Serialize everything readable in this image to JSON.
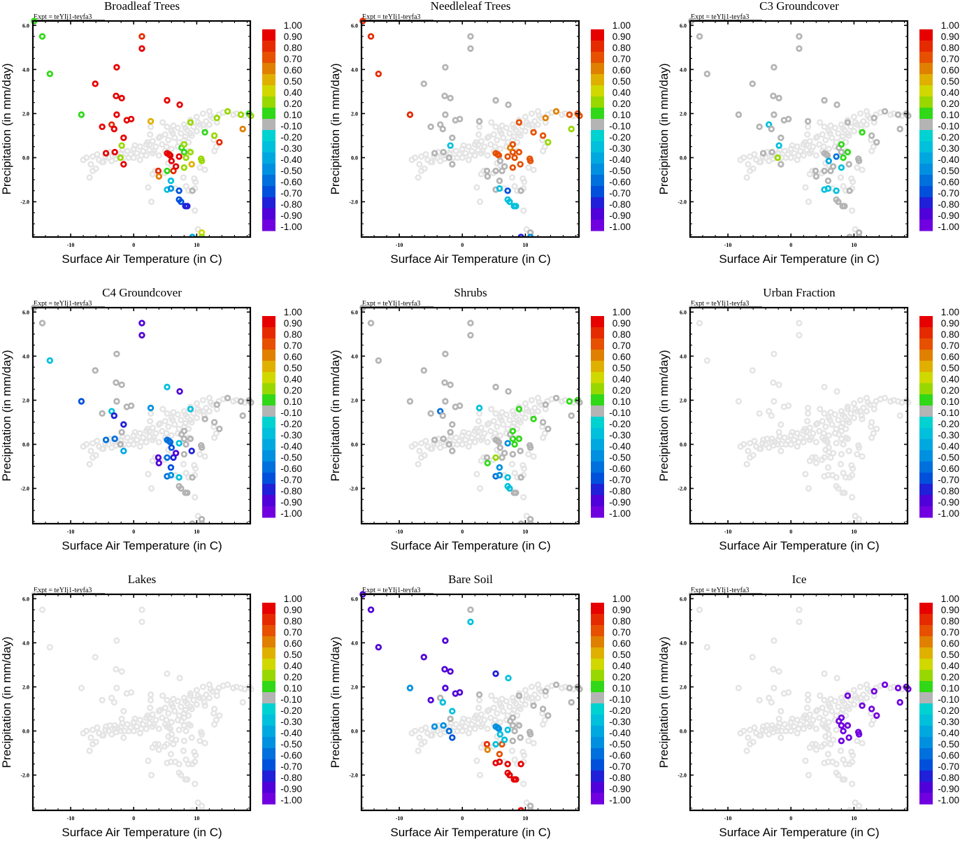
{
  "chart_data": {
    "type": "scatter",
    "layout": "3x3 grid of panels",
    "shared": {
      "expt_label": "Expt = teYIj1-teyfa3",
      "xlabel": "Surface Air Temperature (in C)",
      "ylabel": "Precipitation (in mm/day)",
      "xlim": [
        -16,
        18.5
      ],
      "ylim": [
        -3.6,
        6.2
      ],
      "xticks": [
        -10,
        0,
        10
      ],
      "xtick_labels": [
        "-10",
        "0",
        "10"
      ],
      "yticks": [
        -2,
        0,
        2,
        4,
        6
      ],
      "ytick_labels": [
        "-2.0",
        "0.0",
        "2.0",
        "4.0",
        "6.0"
      ],
      "colorbar": {
        "labels": [
          "1.00",
          "0.90",
          "0.80",
          "0.70",
          "0.60",
          "0.50",
          "0.40",
          "0.20",
          "0.10",
          "-0.10",
          "-0.20",
          "-0.30",
          "-0.40",
          "-0.50",
          "-0.60",
          "-0.70",
          "-0.80",
          "-0.90",
          "-1.00"
        ],
        "colors": [
          "#e60000",
          "#e62a00",
          "#e65000",
          "#e08000",
          "#e0b000",
          "#d0d800",
          "#98d800",
          "#30d818",
          "#b4b4b4",
          "#00d2d2",
          "#00c0dc",
          "#00a8e0",
          "#0090e0",
          "#0070dc",
          "#0050dc",
          "#2020d8",
          "#5000d8",
          "#7000e0"
        ]
      },
      "background_color": "#e4e4e4",
      "points_xy": [
        [
          -15.8,
          6.2
        ],
        [
          -14.5,
          5.5
        ],
        [
          -13.3,
          3.8
        ],
        [
          -8.3,
          1.95
        ],
        [
          -6.1,
          3.35
        ],
        [
          -5.0,
          1.4
        ],
        [
          -4.4,
          0.2
        ],
        [
          -3.5,
          1.5
        ],
        [
          -3.1,
          1.3
        ],
        [
          -2.8,
          2.8
        ],
        [
          -2.7,
          1.95
        ],
        [
          -2.7,
          4.1
        ],
        [
          -3.0,
          0.25
        ],
        [
          -1.9,
          2.7
        ],
        [
          -1.9,
          0.55
        ],
        [
          -1.6,
          0.9
        ],
        [
          -1.6,
          -0.3
        ],
        [
          -1.1,
          1.7
        ],
        [
          -0.4,
          1.75
        ],
        [
          -2.1,
          0.0
        ],
        [
          1.3,
          5.5
        ],
        [
          1.3,
          4.95
        ],
        [
          2.7,
          1.65
        ],
        [
          5.3,
          2.6
        ],
        [
          7.3,
          2.4
        ],
        [
          5.3,
          0.2
        ],
        [
          5.6,
          0.15
        ],
        [
          5.8,
          0.1
        ],
        [
          6.0,
          -0.15
        ],
        [
          6.3,
          -0.6
        ],
        [
          6.7,
          -0.4
        ],
        [
          7.2,
          0.05
        ],
        [
          3.9,
          -0.6
        ],
        [
          5.3,
          -0.6
        ],
        [
          4.0,
          -0.85
        ],
        [
          5.9,
          -1.05
        ],
        [
          5.3,
          -1.45
        ],
        [
          5.9,
          -1.4
        ],
        [
          7.2,
          -1.5
        ],
        [
          7.2,
          -1.9
        ],
        [
          7.5,
          -2.0
        ],
        [
          8.2,
          -2.2
        ],
        [
          8.5,
          -2.2
        ],
        [
          9.3,
          -1.5
        ],
        [
          9.2,
          -0.3
        ],
        [
          8.0,
          -0.45
        ],
        [
          8.0,
          0.25
        ],
        [
          7.6,
          0.45
        ],
        [
          8.0,
          0.6
        ],
        [
          8.3,
          0.0
        ],
        [
          9.0,
          0.25
        ],
        [
          10.7,
          -0.05
        ],
        [
          10.8,
          -0.15
        ],
        [
          11.3,
          1.15
        ],
        [
          12.8,
          1.0
        ],
        [
          13.2,
          1.8
        ],
        [
          13.6,
          0.7
        ],
        [
          14.9,
          2.1
        ],
        [
          17.0,
          1.95
        ],
        [
          17.3,
          1.3
        ],
        [
          18.3,
          2.0
        ],
        [
          18.6,
          1.9
        ],
        [
          9.0,
          1.6
        ],
        [
          10.8,
          -3.4
        ],
        [
          9.3,
          -3.6
        ],
        [
          10.8,
          -3.6
        ],
        [
          3.0,
          -0.75
        ],
        [
          2.3,
          -1.35
        ],
        [
          2.8,
          -2.0
        ],
        [
          3.4,
          -0.6
        ],
        [
          4.9,
          -0.7
        ],
        [
          8.2,
          0.95
        ],
        [
          8.7,
          0.7
        ],
        [
          8.7,
          0.3
        ],
        [
          9.6,
          -0.95
        ],
        [
          9.8,
          -1.1
        ],
        [
          11.3,
          -0.55
        ],
        [
          12.7,
          0.8
        ],
        [
          13.1,
          0.5
        ],
        [
          10.2,
          -3.25
        ],
        [
          9.7,
          -2.4
        ],
        [
          8.7,
          -1.5
        ],
        [
          7.9,
          -0.9
        ],
        [
          17.6,
          1.9
        ],
        [
          -7.0,
          -0.9
        ],
        [
          -6.0,
          -0.5
        ],
        [
          -5.0,
          -0.2
        ],
        [
          -4.0,
          0.0
        ],
        [
          -3.0,
          0.1
        ],
        [
          -2.0,
          0.2
        ],
        [
          -1.0,
          0.3
        ],
        [
          0.0,
          0.4
        ],
        [
          1.0,
          0.5
        ],
        [
          2.0,
          0.6
        ],
        [
          3.0,
          0.75
        ],
        [
          4.0,
          0.9
        ],
        [
          5.0,
          1.05
        ],
        [
          6.0,
          1.2
        ],
        [
          7.0,
          1.35
        ],
        [
          8.0,
          1.5
        ],
        [
          9.0,
          1.7
        ],
        [
          10.0,
          1.85
        ],
        [
          11.0,
          2.0
        ],
        [
          12.0,
          2.1
        ],
        [
          -8.0,
          -0.1
        ],
        [
          -6.5,
          0.05
        ],
        [
          -5.5,
          -0.1
        ],
        [
          -4.5,
          0.05
        ],
        [
          -3.5,
          -0.15
        ],
        [
          -2.5,
          0.1
        ],
        [
          -1.5,
          0.0
        ],
        [
          -0.5,
          0.15
        ],
        [
          0.5,
          0.2
        ],
        [
          1.5,
          0.3
        ],
        [
          2.5,
          0.35
        ],
        [
          3.5,
          0.5
        ],
        [
          4.5,
          0.6
        ],
        [
          5.5,
          0.8
        ],
        [
          6.5,
          0.9
        ],
        [
          7.5,
          1.1
        ],
        [
          8.5,
          1.25
        ],
        [
          9.5,
          1.4
        ],
        [
          10.5,
          1.5
        ],
        [
          11.5,
          1.65
        ],
        [
          12.5,
          1.8
        ],
        [
          13.5,
          1.95
        ],
        [
          -7.5,
          0.0
        ],
        [
          -6.8,
          -0.3
        ],
        [
          -5.8,
          0.15
        ],
        [
          -4.8,
          -0.2
        ],
        [
          -3.8,
          0.25
        ],
        [
          -2.8,
          -0.05
        ],
        [
          -1.8,
          0.35
        ],
        [
          -0.8,
          0.0
        ],
        [
          0.2,
          0.55
        ],
        [
          1.2,
          0.1
        ],
        [
          2.2,
          0.7
        ],
        [
          3.2,
          0.3
        ],
        [
          4.2,
          0.95
        ],
        [
          5.2,
          0.5
        ],
        [
          6.2,
          1.1
        ],
        [
          7.2,
          0.7
        ],
        [
          8.2,
          1.35
        ],
        [
          9.2,
          1.0
        ],
        [
          10.2,
          1.6
        ],
        [
          11.2,
          1.3
        ],
        [
          12.2,
          1.9
        ],
        [
          13.2,
          1.6
        ],
        [
          0.0,
          0.0
        ],
        [
          1.0,
          -0.1
        ],
        [
          2.0,
          0.1
        ],
        [
          3.0,
          0.2
        ],
        [
          4.0,
          0.1
        ],
        [
          5.0,
          0.3
        ],
        [
          6.0,
          0.4
        ],
        [
          7.0,
          0.5
        ],
        [
          8.0,
          0.8
        ],
        [
          9.0,
          1.1
        ],
        [
          10.0,
          1.2
        ],
        [
          11.0,
          1.5
        ],
        [
          12.0,
          1.5
        ],
        [
          -6.5,
          -0.6
        ],
        [
          2.7,
          1.4
        ],
        [
          2.6,
          1.05
        ],
        [
          2.5,
          0.6
        ],
        [
          4.6,
          1.6
        ],
        [
          5.3,
          1.4
        ],
        [
          6.3,
          1.45
        ],
        [
          14.2,
          2.05
        ],
        [
          15.8,
          1.95
        ],
        [
          16.3,
          2.0
        ],
        [
          5.5,
          -0.25
        ],
        [
          6.0,
          -0.35
        ],
        [
          8.3,
          -1.3
        ],
        [
          9.7,
          -1.4
        ],
        [
          10.5,
          -0.45
        ],
        [
          12.8,
          0.3
        ],
        [
          6.6,
          -1.4
        ]
      ],
      "note": "Each point is an ensemble member (T, P); color shows correlation coefficient with the panel's variable. Value null = shown as light gray background."
    },
    "panels": [
      {
        "title": "Broadleaf Trees",
        "values": [
          0.15,
          0.15,
          0.15,
          0.15,
          0.95,
          0.95,
          0.95,
          0.8,
          0.95,
          0.95,
          0.95,
          0.95,
          0.95,
          0.95,
          0.3,
          0.95,
          0.95,
          0.95,
          0.95,
          0.3,
          0.8,
          0.95,
          0.55,
          0.95,
          0.95,
          0.95,
          0.95,
          0.95,
          0.95,
          0.85,
          0.95,
          0.95,
          0.85,
          0.15,
          0.65,
          -0.25,
          -0.3,
          -0.45,
          -0.7,
          -0.7,
          -0.7,
          -0.8,
          -0.8,
          -0.05,
          0.55,
          0.3,
          0.15,
          0.15,
          0.3,
          0.3,
          0.3,
          0.3,
          0.3,
          0.15,
          0.3,
          0.3,
          0.8,
          0.3,
          0.3,
          0.65,
          0.15,
          0.3,
          0.3,
          0.45,
          -0.35,
          0.3
        ]
      },
      {
        "title": "Needleleaf Trees",
        "values": [
          0.85,
          0.85,
          0.85,
          0.85,
          -0.05,
          -0.05,
          -0.05,
          -0.05,
          -0.05,
          -0.05,
          -0.05,
          -0.05,
          -0.05,
          -0.05,
          -0.25,
          -0.05,
          -0.05,
          -0.05,
          -0.05,
          -0.05,
          -0.05,
          -0.05,
          -0.05,
          -0.05,
          -0.05,
          0.75,
          0.75,
          0.75,
          -0.05,
          -0.05,
          -0.05,
          0.75,
          -0.05,
          -0.05,
          -0.05,
          -0.05,
          -0.05,
          -0.25,
          -0.7,
          -0.25,
          -0.25,
          -0.25,
          -0.25,
          -0.05,
          0.75,
          0.75,
          0.75,
          0.65,
          0.75,
          0.75,
          0.75,
          0.75,
          0.75,
          0.75,
          0.75,
          0.65,
          0.3,
          0.65,
          0.75,
          0.3,
          0.75,
          0.75,
          0.75,
          -0.05,
          -0.8,
          -0.5
        ]
      },
      {
        "title": "C3 Groundcover",
        "values": [
          -0.05,
          -0.05,
          -0.05,
          -0.05,
          -0.05,
          -0.05,
          -0.05,
          -0.25,
          -0.05,
          -0.05,
          -0.05,
          -0.05,
          -0.05,
          -0.05,
          -0.25,
          -0.05,
          -0.05,
          -0.05,
          -0.05,
          0.3,
          -0.05,
          -0.05,
          -0.05,
          -0.05,
          -0.05,
          -0.05,
          -0.05,
          -0.05,
          -0.35,
          -0.05,
          -0.05,
          -0.55,
          -0.05,
          -0.05,
          -0.05,
          -0.05,
          -0.25,
          -0.25,
          -0.25,
          -0.05,
          -0.05,
          -0.05,
          -0.05,
          -0.05,
          -0.05,
          -0.25,
          -0.05,
          -0.05,
          0.15,
          0.15,
          0.15,
          -0.05,
          -0.05,
          0.15,
          -0.05,
          -0.05,
          -0.05,
          -0.05,
          -0.05,
          -0.05,
          -0.05,
          -0.05,
          -0.05,
          -0.05,
          -0.05,
          -0.05
        ]
      },
      {
        "title": "C4 Groundcover",
        "values": [
          -0.05,
          -0.05,
          -0.25,
          -0.65,
          -0.05,
          -0.05,
          -0.55,
          -0.25,
          -0.75,
          -0.05,
          -0.05,
          -0.05,
          -0.55,
          -0.05,
          -0.05,
          -0.75,
          -0.35,
          -0.05,
          -0.05,
          -0.05,
          -0.85,
          -0.85,
          -0.45,
          -0.25,
          -0.85,
          -0.55,
          -0.55,
          -0.55,
          -0.65,
          -0.75,
          -0.85,
          -0.25,
          -0.85,
          -0.55,
          -0.85,
          -0.65,
          -0.55,
          -0.45,
          -0.3,
          -0.05,
          -0.05,
          -0.05,
          -0.05,
          -0.05,
          -0.75,
          -0.05,
          -0.05,
          -0.05,
          -0.05,
          -0.05,
          -0.05,
          -0.05,
          -0.05,
          -0.05,
          -0.05,
          -0.05,
          -0.05,
          -0.05,
          -0.05,
          -0.05,
          -0.05,
          -0.05,
          -0.25,
          -0.05,
          -0.05,
          -0.05
        ]
      },
      {
        "title": "Shrubs",
        "values": [
          -0.05,
          -0.05,
          -0.05,
          -0.05,
          -0.05,
          -0.05,
          -0.05,
          -0.6,
          -0.05,
          -0.05,
          -0.05,
          -0.05,
          -0.05,
          -0.05,
          -0.05,
          -0.05,
          -0.05,
          -0.05,
          -0.05,
          -0.05,
          -0.05,
          -0.05,
          -0.25,
          -0.05,
          -0.05,
          -0.05,
          -0.05,
          -0.05,
          -0.05,
          -0.05,
          -0.05,
          -0.45,
          -0.05,
          0.3,
          0.15,
          -0.45,
          -0.55,
          -0.45,
          -0.25,
          -0.25,
          -0.25,
          -0.05,
          -0.05,
          -0.05,
          -0.05,
          -0.05,
          0.15,
          -0.05,
          0.15,
          0.15,
          0.15,
          -0.05,
          -0.05,
          0.15,
          -0.05,
          -0.05,
          -0.05,
          -0.05,
          0.15,
          -0.05,
          0.15,
          -0.05,
          0.15,
          -0.05,
          -0.05,
          -0.05
        ]
      },
      {
        "title": "Urban Fraction",
        "values": []
      },
      {
        "title": "Lakes",
        "values": []
      },
      {
        "title": "Bare Soil",
        "values": [
          -0.85,
          -0.85,
          -0.85,
          -0.45,
          -0.85,
          -0.85,
          -0.45,
          -0.05,
          -0.25,
          -0.85,
          -0.85,
          -0.85,
          -0.45,
          -0.85,
          -0.05,
          -0.25,
          -0.65,
          -0.85,
          -0.85,
          -0.55,
          -0.05,
          -0.25,
          -0.05,
          -0.75,
          -0.25,
          -0.5,
          -0.5,
          -0.5,
          -0.25,
          0.75,
          -0.25,
          -0.25,
          0.85,
          -0.25,
          0.65,
          0.75,
          0.95,
          0.95,
          0.95,
          0.95,
          0.95,
          0.95,
          0.95,
          0.95,
          -0.05,
          -0.05,
          -0.05,
          -0.05,
          -0.05,
          -0.05,
          -0.05,
          -0.05,
          -0.05,
          -0.05,
          -0.05,
          -0.05,
          -0.05,
          -0.05,
          -0.05,
          -0.05,
          -0.05,
          -0.05,
          -0.05,
          -0.05,
          0.95,
          -0.05
        ]
      },
      {
        "title": "Ice",
        "values": [
          null,
          null,
          null,
          null,
          null,
          null,
          null,
          null,
          null,
          null,
          null,
          null,
          null,
          null,
          null,
          null,
          null,
          null,
          null,
          null,
          null,
          null,
          null,
          null,
          null,
          null,
          null,
          null,
          null,
          null,
          null,
          null,
          null,
          null,
          null,
          null,
          null,
          null,
          null,
          null,
          null,
          null,
          null,
          null,
          -0.95,
          -0.95,
          -0.95,
          -0.95,
          -0.95,
          -0.95,
          -0.95,
          -0.95,
          -0.95,
          -0.95,
          -0.95,
          -0.95,
          -0.95,
          -0.95,
          -0.95,
          -0.95,
          -0.95,
          -0.95,
          -0.95,
          null,
          null,
          null
        ]
      }
    ]
  }
}
